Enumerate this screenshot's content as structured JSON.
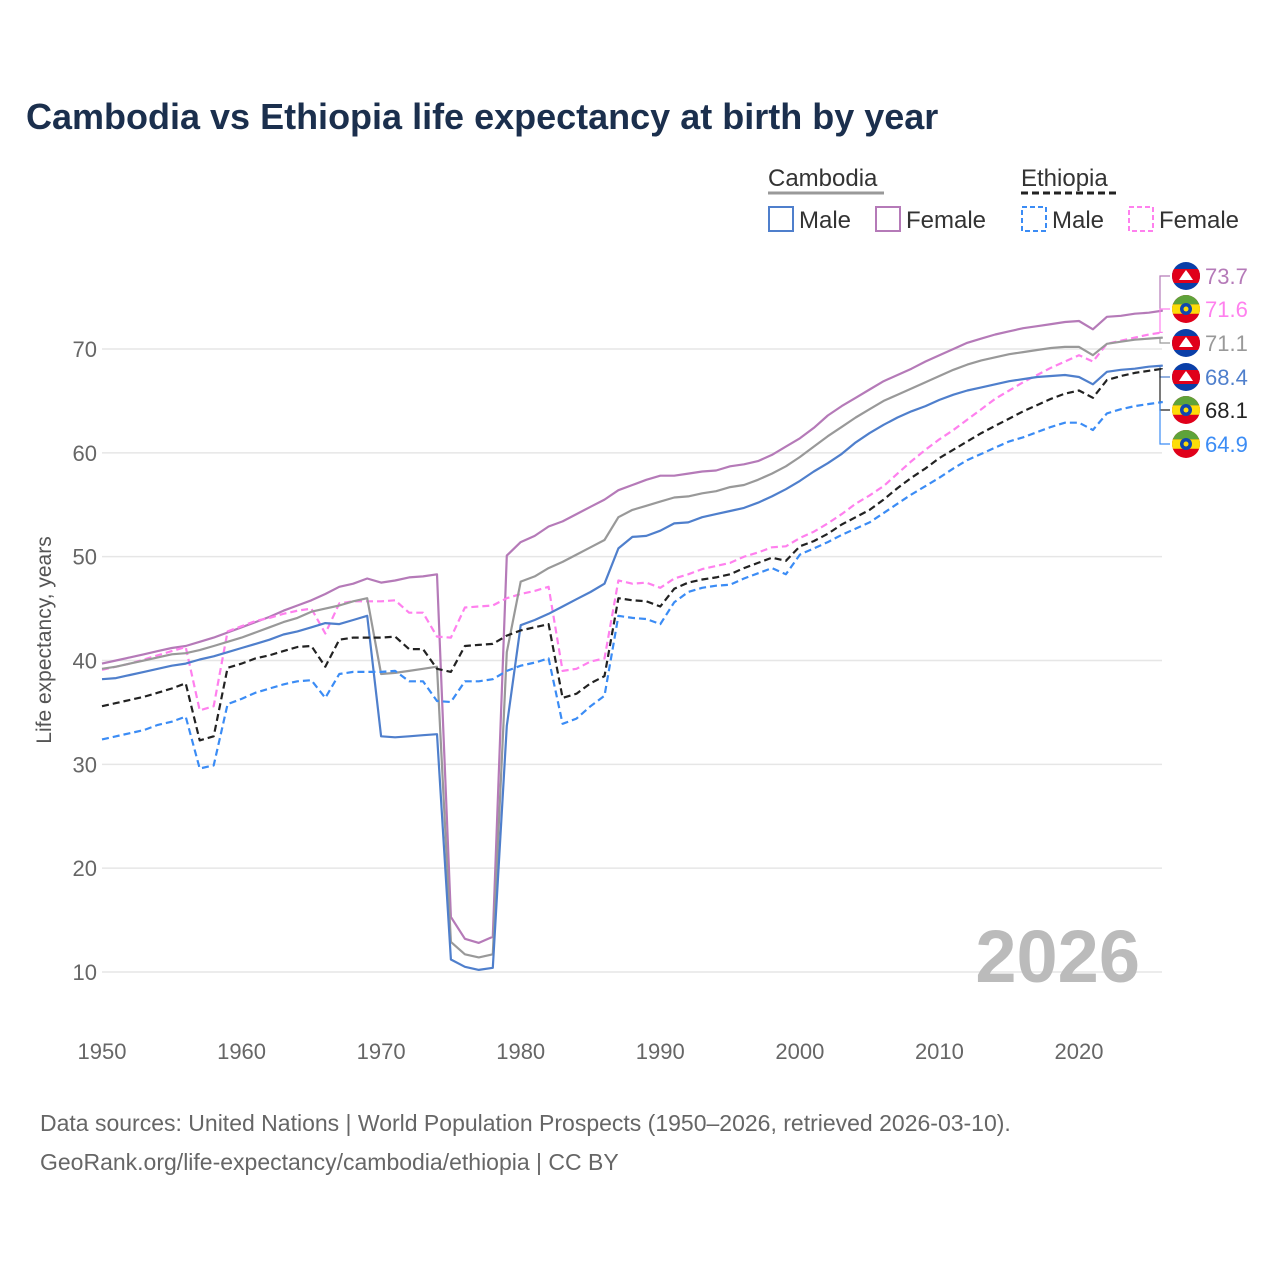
{
  "chart_data": {
    "type": "line",
    "title": "Cambodia vs Ethiopia life expectancy at birth by year",
    "xlabel": "",
    "ylabel": "Life expectancy, years",
    "xlim": [
      1950,
      2026
    ],
    "ylim": [
      5,
      78
    ],
    "x_ticks": [
      1950,
      1960,
      1970,
      1980,
      1990,
      2000,
      2010,
      2020
    ],
    "y_ticks": [
      10,
      20,
      30,
      40,
      50,
      60,
      70
    ],
    "grid": true,
    "year_watermark": "2026",
    "legend": {
      "groups": [
        {
          "name": "Cambodia",
          "items": [
            "Male",
            "Female"
          ]
        },
        {
          "name": "Ethiopia",
          "items": [
            "Male",
            "Female"
          ]
        }
      ],
      "placement": "top-right"
    },
    "x_start": 1950,
    "series": [
      {
        "name": "Cambodia Female",
        "country": "Cambodia",
        "color": "#b57ab8",
        "dashed": false,
        "end_label": "73.7",
        "values": [
          39.7,
          40.0,
          40.3,
          40.6,
          40.9,
          41.2,
          41.4,
          41.8,
          42.2,
          42.7,
          43.2,
          43.7,
          44.2,
          44.8,
          45.3,
          45.8,
          46.4,
          47.1,
          47.4,
          47.9,
          47.5,
          47.7,
          48.0,
          48.1,
          48.3,
          15.3,
          13.2,
          12.8,
          13.4,
          50.1,
          51.4,
          52.0,
          52.9,
          53.4,
          54.1,
          54.8,
          55.5,
          56.4,
          56.9,
          57.4,
          57.8,
          57.8,
          58.0,
          58.2,
          58.3,
          58.7,
          58.9,
          59.2,
          59.8,
          60.6,
          61.4,
          62.4,
          63.6,
          64.5,
          65.3,
          66.1,
          66.9,
          67.5,
          68.1,
          68.8,
          69.4,
          70.0,
          70.6,
          71.0,
          71.4,
          71.7,
          72.0,
          72.2,
          72.4,
          72.6,
          72.7,
          71.9,
          73.1,
          73.2,
          73.4,
          73.5,
          73.7
        ]
      },
      {
        "name": "Ethiopia Female",
        "country": "Ethiopia",
        "color": "#ff80ee",
        "dashed": true,
        "end_label": "71.6",
        "values": [
          39.1,
          39.4,
          39.7,
          40.1,
          40.5,
          40.9,
          41.3,
          35.2,
          35.6,
          42.8,
          43.3,
          43.8,
          44.1,
          44.5,
          44.8,
          45.0,
          42.6,
          45.5,
          45.7,
          45.7,
          45.7,
          45.8,
          44.6,
          44.6,
          42.3,
          42.2,
          45.1,
          45.2,
          45.3,
          46.0,
          46.4,
          46.7,
          47.1,
          39.0,
          39.2,
          39.9,
          40.2,
          47.7,
          47.4,
          47.5,
          47.0,
          47.9,
          48.3,
          48.8,
          49.1,
          49.4,
          50.0,
          50.4,
          50.9,
          51.0,
          51.8,
          52.4,
          53.2,
          54.1,
          55.1,
          55.9,
          56.8,
          58.0,
          59.2,
          60.3,
          61.3,
          62.2,
          63.2,
          64.2,
          65.2,
          66.0,
          66.8,
          67.5,
          68.2,
          68.8,
          69.4,
          68.8,
          70.5,
          70.8,
          71.1,
          71.4,
          71.6
        ]
      },
      {
        "name": "Cambodia",
        "country": "Cambodia",
        "color": "#999999",
        "dashed": false,
        "end_label": "71.1",
        "values": [
          39.2,
          39.4,
          39.7,
          40.0,
          40.3,
          40.6,
          40.7,
          41.0,
          41.4,
          41.8,
          42.2,
          42.7,
          43.2,
          43.7,
          44.1,
          44.7,
          45.0,
          45.3,
          45.7,
          46.0,
          38.7,
          38.8,
          39.0,
          39.2,
          39.4,
          12.9,
          11.7,
          11.4,
          11.7,
          40.8,
          47.6,
          48.1,
          48.9,
          49.5,
          50.2,
          50.9,
          51.6,
          53.8,
          54.5,
          54.9,
          55.3,
          55.7,
          55.8,
          56.1,
          56.3,
          56.7,
          56.9,
          57.4,
          58.0,
          58.7,
          59.6,
          60.6,
          61.6,
          62.5,
          63.4,
          64.2,
          65.0,
          65.6,
          66.2,
          66.8,
          67.4,
          68.0,
          68.5,
          68.9,
          69.2,
          69.5,
          69.7,
          69.9,
          70.1,
          70.2,
          70.2,
          69.4,
          70.5,
          70.7,
          70.9,
          71.0,
          71.1
        ]
      },
      {
        "name": "Cambodia Male",
        "country": "Cambodia",
        "color": "#4f7fcc",
        "dashed": false,
        "end_label": "68.4",
        "values": [
          38.2,
          38.3,
          38.6,
          38.9,
          39.2,
          39.5,
          39.7,
          40.1,
          40.4,
          40.8,
          41.2,
          41.6,
          42.0,
          42.5,
          42.8,
          43.2,
          43.6,
          43.5,
          43.9,
          44.3,
          32.7,
          32.6,
          32.7,
          32.8,
          32.9,
          11.2,
          10.5,
          10.2,
          10.4,
          33.7,
          43.4,
          43.9,
          44.5,
          45.2,
          45.9,
          46.6,
          47.4,
          50.8,
          51.9,
          52.0,
          52.5,
          53.2,
          53.3,
          53.8,
          54.1,
          54.4,
          54.7,
          55.2,
          55.8,
          56.5,
          57.3,
          58.2,
          59.0,
          59.9,
          61.0,
          61.9,
          62.7,
          63.4,
          64.0,
          64.5,
          65.1,
          65.6,
          66.0,
          66.3,
          66.6,
          66.9,
          67.1,
          67.3,
          67.4,
          67.5,
          67.3,
          66.6,
          67.8,
          68.0,
          68.1,
          68.3,
          68.4
        ]
      },
      {
        "name": "Ethiopia",
        "country": "Ethiopia",
        "color": "#222222",
        "dashed": true,
        "end_label": "68.1",
        "values": [
          35.6,
          35.9,
          36.2,
          36.5,
          36.9,
          37.3,
          37.8,
          32.3,
          32.7,
          39.3,
          39.7,
          40.2,
          40.5,
          40.9,
          41.3,
          41.4,
          39.4,
          42.0,
          42.2,
          42.2,
          42.2,
          42.3,
          41.1,
          41.1,
          39.2,
          38.9,
          41.4,
          41.5,
          41.6,
          42.4,
          42.9,
          43.2,
          43.5,
          36.4,
          36.8,
          37.8,
          38.5,
          46.0,
          45.8,
          45.7,
          45.2,
          46.9,
          47.5,
          47.8,
          48.0,
          48.3,
          48.9,
          49.4,
          49.9,
          49.6,
          51.0,
          51.5,
          52.2,
          53.1,
          53.8,
          54.5,
          55.5,
          56.6,
          57.6,
          58.5,
          59.5,
          60.3,
          61.1,
          61.9,
          62.6,
          63.3,
          64.0,
          64.6,
          65.2,
          65.7,
          66.0,
          65.3,
          67.0,
          67.4,
          67.7,
          67.9,
          68.1
        ]
      },
      {
        "name": "Ethiopia Male",
        "country": "Ethiopia",
        "color": "#3b8cf5",
        "dashed": true,
        "end_label": "64.9",
        "values": [
          32.4,
          32.7,
          33.0,
          33.3,
          33.8,
          34.1,
          34.6,
          29.6,
          29.9,
          35.8,
          36.3,
          36.9,
          37.3,
          37.7,
          38.0,
          38.1,
          36.4,
          38.7,
          38.9,
          38.9,
          38.9,
          39.0,
          38.0,
          38.0,
          36.1,
          36.0,
          38.0,
          38.0,
          38.2,
          39.0,
          39.5,
          39.8,
          40.2,
          33.9,
          34.4,
          35.6,
          36.6,
          44.3,
          44.1,
          44.0,
          43.5,
          45.6,
          46.6,
          47.0,
          47.2,
          47.3,
          47.9,
          48.4,
          48.9,
          48.3,
          50.2,
          50.8,
          51.4,
          52.1,
          52.7,
          53.3,
          54.2,
          55.1,
          56.0,
          56.8,
          57.6,
          58.5,
          59.3,
          59.9,
          60.5,
          61.1,
          61.5,
          62.0,
          62.5,
          62.9,
          62.9,
          62.2,
          63.8,
          64.2,
          64.5,
          64.7,
          64.9
        ]
      }
    ]
  },
  "footer": {
    "line1": "Data sources: United Nations | World Population Prospects (1950–2026, retrieved 2026-03-10).",
    "line2": "GeoRank.org/life-expectancy/cambodia/ethiopia | CC BY"
  }
}
